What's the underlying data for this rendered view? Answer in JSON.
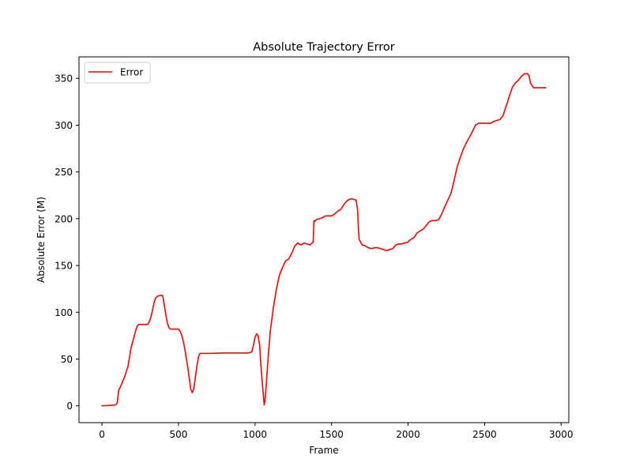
{
  "chart_data": {
    "type": "line",
    "title": "Absolute Trajectory Error",
    "xlabel": "Frame",
    "ylabel": "Absolute Error (M)",
    "xlim": [
      -150,
      3050
    ],
    "ylim": [
      -18,
      373
    ],
    "xticks": [
      0,
      500,
      1000,
      1500,
      2000,
      2500,
      3000
    ],
    "yticks": [
      0,
      50,
      100,
      150,
      200,
      250,
      300,
      350
    ],
    "grid": false,
    "legend_position": "top-left",
    "colors": {
      "series": "#ff0000",
      "axes": "#000000",
      "legend_border": "#cccccc"
    },
    "series": [
      {
        "name": "Error",
        "x": [
          0,
          60,
          90,
          100,
          110,
          120,
          130,
          150,
          170,
          180,
          190,
          200,
          210,
          220,
          230,
          240,
          250,
          270,
          300,
          310,
          320,
          330,
          340,
          350,
          360,
          380,
          395,
          400,
          410,
          420,
          430,
          440,
          450,
          460,
          500,
          510,
          520,
          530,
          540,
          550,
          560,
          570,
          580,
          590,
          600,
          610,
          620,
          630,
          640,
          650,
          700,
          800,
          900,
          950,
          970,
          980,
          990,
          1000,
          1010,
          1020,
          1030,
          1040,
          1050,
          1060,
          1065,
          1070,
          1080,
          1090,
          1100,
          1120,
          1140,
          1160,
          1180,
          1200,
          1220,
          1240,
          1260,
          1280,
          1300,
          1320,
          1340,
          1360,
          1380,
          1385,
          1390,
          1395,
          1400,
          1420,
          1440,
          1460,
          1500,
          1520,
          1540,
          1560,
          1580,
          1600,
          1620,
          1640,
          1660,
          1670,
          1675,
          1680,
          1690,
          1700,
          1720,
          1740,
          1760,
          1780,
          1800,
          1820,
          1840,
          1860,
          1880,
          1900,
          1920,
          1940,
          1960,
          1970,
          1980,
          2000,
          2010,
          2020,
          2040,
          2060,
          2080,
          2100,
          2120,
          2140,
          2160,
          2180,
          2200,
          2220,
          2240,
          2260,
          2280,
          2300,
          2320,
          2340,
          2360,
          2380,
          2400,
          2420,
          2440,
          2460,
          2480,
          2500,
          2520,
          2540,
          2560,
          2580,
          2600,
          2620,
          2640,
          2660,
          2680,
          2700,
          2720,
          2740,
          2760,
          2780,
          2790,
          2800,
          2820,
          2850,
          2900
        ],
        "values": [
          0,
          0.5,
          1,
          3,
          17,
          20,
          24,
          32,
          42,
          52,
          62,
          68,
          74,
          80,
          85,
          87,
          87,
          87,
          87,
          90,
          95,
          102,
          110,
          115,
          117,
          118,
          118,
          115,
          105,
          95,
          87,
          83,
          82,
          82,
          82,
          80,
          76,
          70,
          62,
          52,
          42,
          30,
          18,
          14,
          18,
          30,
          42,
          52,
          56,
          56,
          56,
          56.5,
          56.5,
          56.5,
          57,
          58,
          65,
          73,
          77,
          75,
          65,
          40,
          20,
          1,
          5,
          15,
          38,
          60,
          80,
          105,
          125,
          140,
          148,
          155,
          157,
          163,
          171,
          174,
          172,
          174,
          173,
          172,
          175,
          198,
          197,
          198,
          199,
          200,
          201,
          203,
          203,
          205,
          208,
          210,
          215,
          219,
          221,
          221,
          220,
          210,
          192,
          178,
          175,
          172,
          171,
          169,
          168,
          169,
          169,
          168,
          167,
          166,
          167,
          168,
          172,
          173,
          173,
          174,
          174,
          175,
          177,
          178,
          180,
          185,
          187,
          189,
          193,
          197,
          198,
          198,
          199,
          205,
          213,
          220,
          227,
          240,
          255,
          265,
          274,
          281,
          287,
          293,
          300,
          302,
          302,
          302,
          302,
          302,
          304,
          305,
          306,
          310,
          320,
          330,
          340,
          345,
          348,
          352,
          355,
          355,
          353,
          345,
          340,
          340,
          340
        ]
      }
    ]
  }
}
